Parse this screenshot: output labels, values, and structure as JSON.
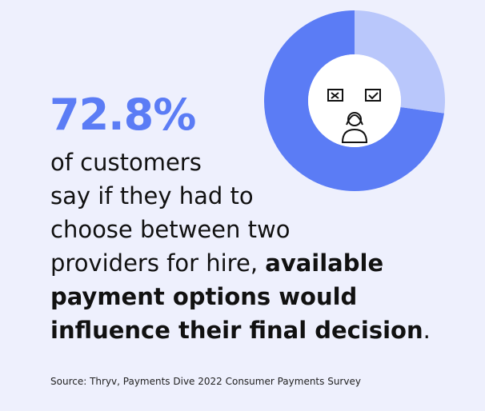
{
  "chart_data": {
    "type": "donut",
    "values": [
      72.8,
      27.2
    ],
    "value_labels": [
      "72.8%",
      null
    ],
    "colors": [
      "#5b7cf5",
      "#b9c7fb"
    ],
    "text_lines": [
      [
        {
          "text": "of customers"
        }
      ],
      [
        {
          "text": "say if they had to"
        }
      ],
      [
        {
          "text": "choose between two"
        }
      ],
      [
        {
          "text": "providers for hire, "
        },
        {
          "text": "available",
          "bold": true
        }
      ],
      [
        {
          "text": "payment options would",
          "bold": true
        }
      ],
      [
        {
          "text": "influence their final decision",
          "bold": true
        },
        {
          "text": "."
        }
      ]
    ],
    "source": "Source: Thryv, Payments Dive 2022 Consumer Payments Survey"
  }
}
